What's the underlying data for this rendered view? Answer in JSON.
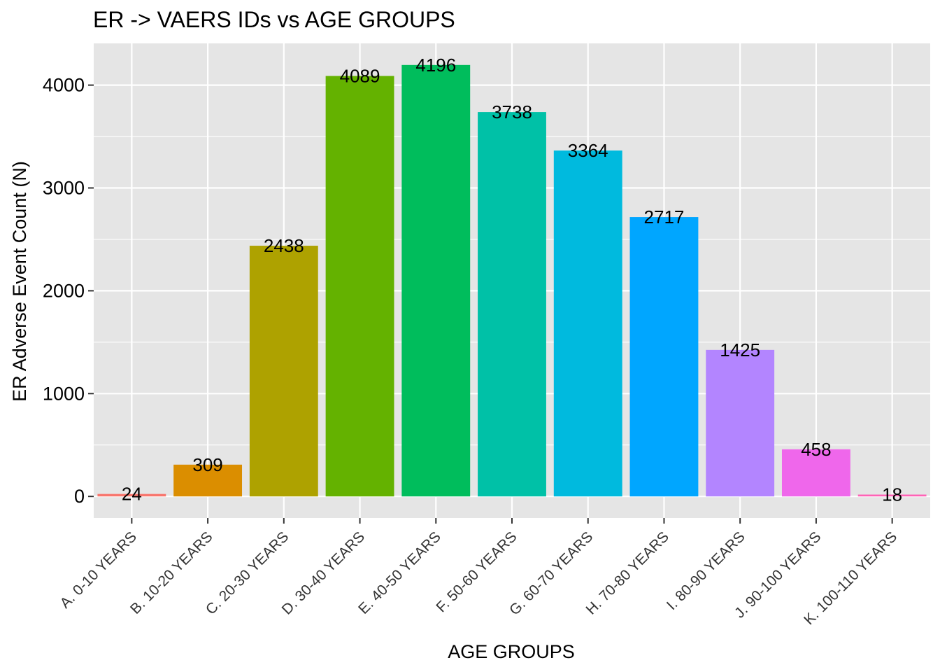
{
  "chart_data": {
    "type": "bar",
    "title": "ER -> VAERS IDs vs AGE GROUPS",
    "xlabel": "AGE GROUPS",
    "ylabel": "ER Adverse Event Count (N)",
    "categories": [
      "A. 0-10 YEARS",
      "B. 10-20 YEARS",
      "C. 20-30 YEARS",
      "D. 30-40 YEARS",
      "E. 40-50 YEARS",
      "F. 50-60 YEARS",
      "G. 60-70 YEARS",
      "H. 70-80 YEARS",
      "I. 80-90 YEARS",
      "J. 90-100 YEARS",
      "K. 100-110 YEARS"
    ],
    "values": [
      24,
      309,
      2438,
      4089,
      4196,
      3738,
      3364,
      2717,
      1425,
      458,
      18
    ],
    "data_labels": [
      "24",
      "309",
      "2438",
      "4089",
      "4196",
      "3738",
      "3364",
      "2717",
      "1425",
      "458",
      "18"
    ],
    "colors": [
      "#F8766D",
      "#DB8E00",
      "#AEA200",
      "#64B200",
      "#00BD5C",
      "#00C1A7",
      "#00BADE",
      "#00A6FF",
      "#B385FF",
      "#EF67EB",
      "#FF63B6"
    ],
    "ylim": [
      -209.8,
      4405.8
    ],
    "y_ticks": [
      0,
      1000,
      2000,
      3000,
      4000
    ],
    "y_tick_labels": [
      "0",
      "1000",
      "2000",
      "3000",
      "4000"
    ],
    "grid": true,
    "panel_background": "#E5E5E5",
    "grid_color": "#FFFFFF",
    "legend": "none"
  }
}
